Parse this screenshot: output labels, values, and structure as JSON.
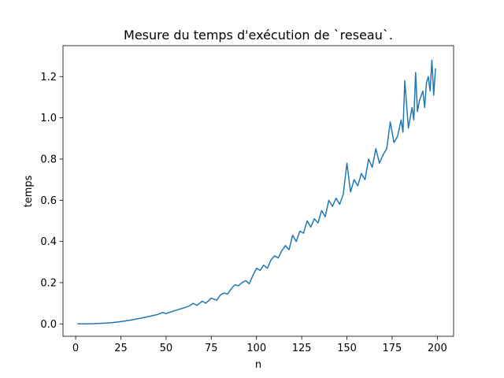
{
  "chart_data": {
    "type": "line",
    "title": "Mesure du temps d'exécution de `reseau`.",
    "xlabel": "n",
    "ylabel": "temps",
    "xlim": [
      -7,
      209
    ],
    "ylim": [
      -0.06,
      1.35
    ],
    "grid": false,
    "x_ticks": [
      0,
      25,
      50,
      75,
      100,
      125,
      150,
      175,
      200
    ],
    "x_tick_labels": [
      "0",
      "25",
      "50",
      "75",
      "100",
      "125",
      "150",
      "175",
      "200"
    ],
    "y_ticks": [
      0.0,
      0.2,
      0.4,
      0.6,
      0.8,
      1.0,
      1.2
    ],
    "y_tick_labels": [
      "0.0",
      "0.2",
      "0.4",
      "0.6",
      "0.8",
      "1.0",
      "1.2"
    ],
    "series": [
      {
        "color": "#1f77b4",
        "points": [
          [
            1,
            0.0
          ],
          [
            5,
            0.0
          ],
          [
            10,
            0.001
          ],
          [
            15,
            0.003
          ],
          [
            20,
            0.006
          ],
          [
            25,
            0.011
          ],
          [
            30,
            0.018
          ],
          [
            35,
            0.026
          ],
          [
            40,
            0.035
          ],
          [
            45,
            0.045
          ],
          [
            48,
            0.055
          ],
          [
            50,
            0.05
          ],
          [
            55,
            0.065
          ],
          [
            60,
            0.078
          ],
          [
            63,
            0.088
          ],
          [
            65,
            0.1
          ],
          [
            67,
            0.09
          ],
          [
            70,
            0.11
          ],
          [
            72,
            0.1
          ],
          [
            75,
            0.125
          ],
          [
            78,
            0.115
          ],
          [
            80,
            0.14
          ],
          [
            82,
            0.15
          ],
          [
            84,
            0.145
          ],
          [
            86,
            0.17
          ],
          [
            88,
            0.19
          ],
          [
            90,
            0.185
          ],
          [
            92,
            0.2
          ],
          [
            94,
            0.21
          ],
          [
            96,
            0.195
          ],
          [
            98,
            0.235
          ],
          [
            100,
            0.27
          ],
          [
            102,
            0.26
          ],
          [
            104,
            0.285
          ],
          [
            106,
            0.27
          ],
          [
            108,
            0.31
          ],
          [
            110,
            0.33
          ],
          [
            112,
            0.32
          ],
          [
            114,
            0.355
          ],
          [
            116,
            0.38
          ],
          [
            118,
            0.36
          ],
          [
            120,
            0.43
          ],
          [
            122,
            0.4
          ],
          [
            124,
            0.45
          ],
          [
            126,
            0.44
          ],
          [
            128,
            0.5
          ],
          [
            130,
            0.47
          ],
          [
            132,
            0.51
          ],
          [
            134,
            0.49
          ],
          [
            136,
            0.55
          ],
          [
            138,
            0.52
          ],
          [
            140,
            0.6
          ],
          [
            142,
            0.57
          ],
          [
            144,
            0.61
          ],
          [
            146,
            0.58
          ],
          [
            148,
            0.63
          ],
          [
            150,
            0.78
          ],
          [
            152,
            0.64
          ],
          [
            154,
            0.7
          ],
          [
            156,
            0.67
          ],
          [
            158,
            0.73
          ],
          [
            160,
            0.7
          ],
          [
            162,
            0.8
          ],
          [
            164,
            0.76
          ],
          [
            166,
            0.85
          ],
          [
            168,
            0.78
          ],
          [
            170,
            0.82
          ],
          [
            172,
            0.85
          ],
          [
            174,
            0.98
          ],
          [
            176,
            0.88
          ],
          [
            178,
            0.91
          ],
          [
            180,
            0.99
          ],
          [
            181,
            0.93
          ],
          [
            182,
            1.18
          ],
          [
            184,
            0.95
          ],
          [
            186,
            1.05
          ],
          [
            187,
            0.99
          ],
          [
            188,
            1.22
          ],
          [
            189,
            1.03
          ],
          [
            190,
            1.08
          ],
          [
            192,
            1.13
          ],
          [
            193,
            1.05
          ],
          [
            194,
            1.17
          ],
          [
            195,
            1.2
          ],
          [
            196,
            1.13
          ],
          [
            197,
            1.28
          ],
          [
            198,
            1.11
          ],
          [
            199,
            1.24
          ]
        ]
      }
    ]
  }
}
